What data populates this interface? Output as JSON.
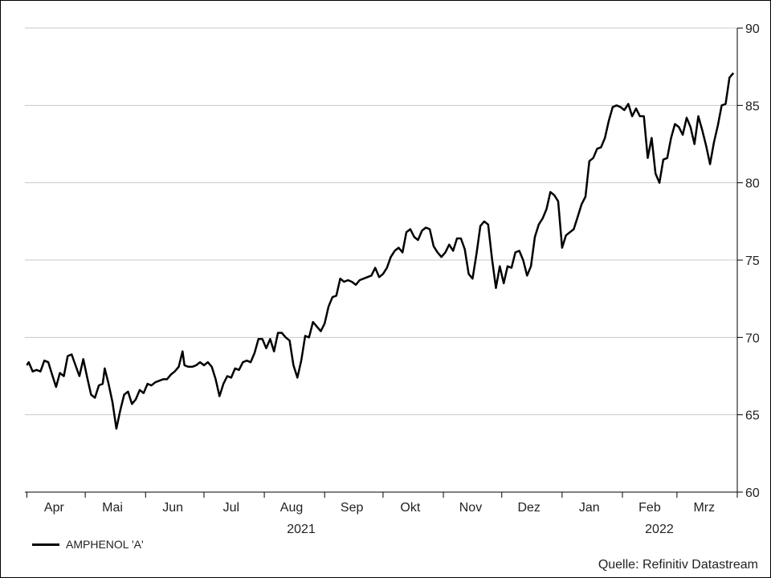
{
  "chart_data": {
    "type": "line",
    "title": "",
    "xlabel": "",
    "ylabel": "",
    "ylim": [
      60,
      90
    ],
    "y_ticks": [
      60,
      65,
      70,
      75,
      80,
      85,
      90
    ],
    "y_axis_side": "right",
    "grid": "horizontal",
    "legend_position": "bottom-left",
    "x_month_labels": [
      {
        "label": "Apr",
        "date": "2021-04-15"
      },
      {
        "label": "Mai",
        "date": "2021-05-15"
      },
      {
        "label": "Jun",
        "date": "2021-06-15"
      },
      {
        "label": "Jul",
        "date": "2021-07-15"
      },
      {
        "label": "Aug",
        "date": "2021-08-15"
      },
      {
        "label": "Sep",
        "date": "2021-09-15"
      },
      {
        "label": "Okt",
        "date": "2021-10-15"
      },
      {
        "label": "Nov",
        "date": "2021-11-15"
      },
      {
        "label": "Dez",
        "date": "2021-12-15"
      },
      {
        "label": "Jan",
        "date": "2022-01-15"
      },
      {
        "label": "Feb",
        "date": "2022-02-15"
      },
      {
        "label": "Mrz",
        "date": "2022-03-15"
      }
    ],
    "year_labels": [
      {
        "label": "2021",
        "date": "2021-08-15"
      },
      {
        "label": "2022",
        "date": "2022-02-15"
      }
    ],
    "series": [
      {
        "name": "AMPHENOL 'A'",
        "color": "#000000",
        "points": [
          [
            "2021-04-01",
            68.2
          ],
          [
            "2021-04-02",
            68.4
          ],
          [
            "2021-04-04",
            67.8
          ],
          [
            "2021-04-06",
            67.9
          ],
          [
            "2021-04-08",
            67.8
          ],
          [
            "2021-04-10",
            68.5
          ],
          [
            "2021-04-12",
            68.4
          ],
          [
            "2021-04-14",
            67.6
          ],
          [
            "2021-04-16",
            66.8
          ],
          [
            "2021-04-18",
            67.7
          ],
          [
            "2021-04-20",
            67.5
          ],
          [
            "2021-04-22",
            68.8
          ],
          [
            "2021-04-24",
            68.9
          ],
          [
            "2021-04-26",
            68.2
          ],
          [
            "2021-04-28",
            67.5
          ],
          [
            "2021-04-30",
            68.6
          ],
          [
            "2021-05-02",
            67.4
          ],
          [
            "2021-05-04",
            66.3
          ],
          [
            "2021-05-06",
            66.1
          ],
          [
            "2021-05-08",
            66.9
          ],
          [
            "2021-05-10",
            67.0
          ],
          [
            "2021-05-11",
            68.0
          ],
          [
            "2021-05-13",
            67.0
          ],
          [
            "2021-05-15",
            65.8
          ],
          [
            "2021-05-17",
            64.1
          ],
          [
            "2021-05-19",
            65.3
          ],
          [
            "2021-05-21",
            66.3
          ],
          [
            "2021-05-23",
            66.5
          ],
          [
            "2021-05-25",
            65.7
          ],
          [
            "2021-05-27",
            66.0
          ],
          [
            "2021-05-29",
            66.6
          ],
          [
            "2021-05-31",
            66.4
          ],
          [
            "2021-06-02",
            67.0
          ],
          [
            "2021-06-04",
            66.9
          ],
          [
            "2021-06-06",
            67.1
          ],
          [
            "2021-06-08",
            67.2
          ],
          [
            "2021-06-10",
            67.3
          ],
          [
            "2021-06-12",
            67.3
          ],
          [
            "2021-06-14",
            67.6
          ],
          [
            "2021-06-16",
            67.8
          ],
          [
            "2021-06-18",
            68.1
          ],
          [
            "2021-06-20",
            69.1
          ],
          [
            "2021-06-21",
            68.2
          ],
          [
            "2021-06-23",
            68.1
          ],
          [
            "2021-06-25",
            68.1
          ],
          [
            "2021-06-27",
            68.2
          ],
          [
            "2021-06-29",
            68.4
          ],
          [
            "2021-07-01",
            68.2
          ],
          [
            "2021-07-03",
            68.4
          ],
          [
            "2021-07-05",
            68.1
          ],
          [
            "2021-07-07",
            67.3
          ],
          [
            "2021-07-09",
            66.2
          ],
          [
            "2021-07-11",
            67.0
          ],
          [
            "2021-07-13",
            67.5
          ],
          [
            "2021-07-15",
            67.4
          ],
          [
            "2021-07-17",
            68.0
          ],
          [
            "2021-07-19",
            67.9
          ],
          [
            "2021-07-21",
            68.4
          ],
          [
            "2021-07-23",
            68.5
          ],
          [
            "2021-07-25",
            68.4
          ],
          [
            "2021-07-27",
            69.0
          ],
          [
            "2021-07-29",
            69.9
          ],
          [
            "2021-07-31",
            69.9
          ],
          [
            "2021-08-02",
            69.3
          ],
          [
            "2021-08-04",
            69.9
          ],
          [
            "2021-08-06",
            69.1
          ],
          [
            "2021-08-08",
            70.3
          ],
          [
            "2021-08-10",
            70.3
          ],
          [
            "2021-08-12",
            70.0
          ],
          [
            "2021-08-14",
            69.8
          ],
          [
            "2021-08-16",
            68.2
          ],
          [
            "2021-08-18",
            67.4
          ],
          [
            "2021-08-20",
            68.5
          ],
          [
            "2021-08-22",
            70.1
          ],
          [
            "2021-08-24",
            70.0
          ],
          [
            "2021-08-26",
            71.0
          ],
          [
            "2021-08-28",
            70.7
          ],
          [
            "2021-08-30",
            70.4
          ],
          [
            "2021-09-01",
            70.9
          ],
          [
            "2021-09-03",
            72.0
          ],
          [
            "2021-09-05",
            72.6
          ],
          [
            "2021-09-07",
            72.7
          ],
          [
            "2021-09-09",
            73.8
          ],
          [
            "2021-09-11",
            73.6
          ],
          [
            "2021-09-13",
            73.7
          ],
          [
            "2021-09-15",
            73.6
          ],
          [
            "2021-09-17",
            73.4
          ],
          [
            "2021-09-19",
            73.7
          ],
          [
            "2021-09-21",
            73.8
          ],
          [
            "2021-09-23",
            73.9
          ],
          [
            "2021-09-25",
            74.0
          ],
          [
            "2021-09-27",
            74.5
          ],
          [
            "2021-09-29",
            73.9
          ],
          [
            "2021-10-01",
            74.1
          ],
          [
            "2021-10-03",
            74.5
          ],
          [
            "2021-10-05",
            75.2
          ],
          [
            "2021-10-07",
            75.6
          ],
          [
            "2021-10-09",
            75.8
          ],
          [
            "2021-10-11",
            75.5
          ],
          [
            "2021-10-13",
            76.8
          ],
          [
            "2021-10-15",
            77.0
          ],
          [
            "2021-10-17",
            76.5
          ],
          [
            "2021-10-19",
            76.3
          ],
          [
            "2021-10-21",
            76.9
          ],
          [
            "2021-10-23",
            77.1
          ],
          [
            "2021-10-25",
            77.0
          ],
          [
            "2021-10-27",
            75.9
          ],
          [
            "2021-10-29",
            75.5
          ],
          [
            "2021-10-31",
            75.2
          ],
          [
            "2021-11-02",
            75.5
          ],
          [
            "2021-11-04",
            76.0
          ],
          [
            "2021-11-06",
            75.6
          ],
          [
            "2021-11-08",
            76.4
          ],
          [
            "2021-11-10",
            76.4
          ],
          [
            "2021-11-12",
            75.7
          ],
          [
            "2021-11-14",
            74.1
          ],
          [
            "2021-11-16",
            73.8
          ],
          [
            "2021-11-18",
            75.4
          ],
          [
            "2021-11-20",
            77.2
          ],
          [
            "2021-11-22",
            77.5
          ],
          [
            "2021-11-24",
            77.3
          ],
          [
            "2021-11-26",
            75.1
          ],
          [
            "2021-11-28",
            73.2
          ],
          [
            "2021-11-30",
            74.6
          ],
          [
            "2021-12-02",
            73.5
          ],
          [
            "2021-12-04",
            74.6
          ],
          [
            "2021-12-06",
            74.5
          ],
          [
            "2021-12-08",
            75.5
          ],
          [
            "2021-12-10",
            75.6
          ],
          [
            "2021-12-12",
            75.0
          ],
          [
            "2021-12-14",
            74.0
          ],
          [
            "2021-12-16",
            74.6
          ],
          [
            "2021-12-18",
            76.5
          ],
          [
            "2021-12-20",
            77.3
          ],
          [
            "2021-12-22",
            77.7
          ],
          [
            "2021-12-24",
            78.3
          ],
          [
            "2021-12-26",
            79.4
          ],
          [
            "2021-12-28",
            79.2
          ],
          [
            "2021-12-30",
            78.8
          ],
          [
            "2022-01-01",
            75.8
          ],
          [
            "2022-01-03",
            76.6
          ],
          [
            "2022-01-05",
            76.8
          ],
          [
            "2022-01-07",
            77.0
          ],
          [
            "2022-01-09",
            77.8
          ],
          [
            "2022-01-11",
            78.6
          ],
          [
            "2022-01-13",
            79.1
          ],
          [
            "2022-01-15",
            81.4
          ],
          [
            "2022-01-17",
            81.6
          ],
          [
            "2022-01-19",
            82.2
          ],
          [
            "2022-01-21",
            82.3
          ],
          [
            "2022-01-23",
            82.9
          ],
          [
            "2022-01-25",
            84.0
          ],
          [
            "2022-01-27",
            84.9
          ],
          [
            "2022-01-29",
            85.0
          ],
          [
            "2022-01-31",
            84.9
          ],
          [
            "2022-02-02",
            84.7
          ],
          [
            "2022-02-04",
            85.1
          ],
          [
            "2022-02-06",
            84.3
          ],
          [
            "2022-02-08",
            84.8
          ],
          [
            "2022-02-10",
            84.3
          ],
          [
            "2022-02-12",
            84.3
          ],
          [
            "2022-02-14",
            81.6
          ],
          [
            "2022-02-16",
            82.9
          ],
          [
            "2022-02-18",
            80.6
          ],
          [
            "2022-02-20",
            80.0
          ],
          [
            "2022-02-22",
            81.5
          ],
          [
            "2022-02-24",
            81.6
          ],
          [
            "2022-02-26",
            82.9
          ],
          [
            "2022-02-28",
            83.8
          ],
          [
            "2022-03-02",
            83.6
          ],
          [
            "2022-03-04",
            83.1
          ],
          [
            "2022-03-06",
            84.2
          ],
          [
            "2022-03-08",
            83.6
          ],
          [
            "2022-03-10",
            82.5
          ],
          [
            "2022-03-12",
            84.3
          ],
          [
            "2022-03-14",
            83.4
          ],
          [
            "2022-03-16",
            82.4
          ],
          [
            "2022-03-18",
            81.2
          ],
          [
            "2022-03-20",
            82.6
          ],
          [
            "2022-03-22",
            83.7
          ],
          [
            "2022-03-24",
            85.0
          ],
          [
            "2022-03-26",
            85.1
          ],
          [
            "2022-03-28",
            86.8
          ],
          [
            "2022-03-30",
            87.1
          ]
        ]
      }
    ]
  },
  "legend": {
    "label": "AMPHENOL 'A'"
  },
  "source": "Quelle: Refinitiv Datastream"
}
